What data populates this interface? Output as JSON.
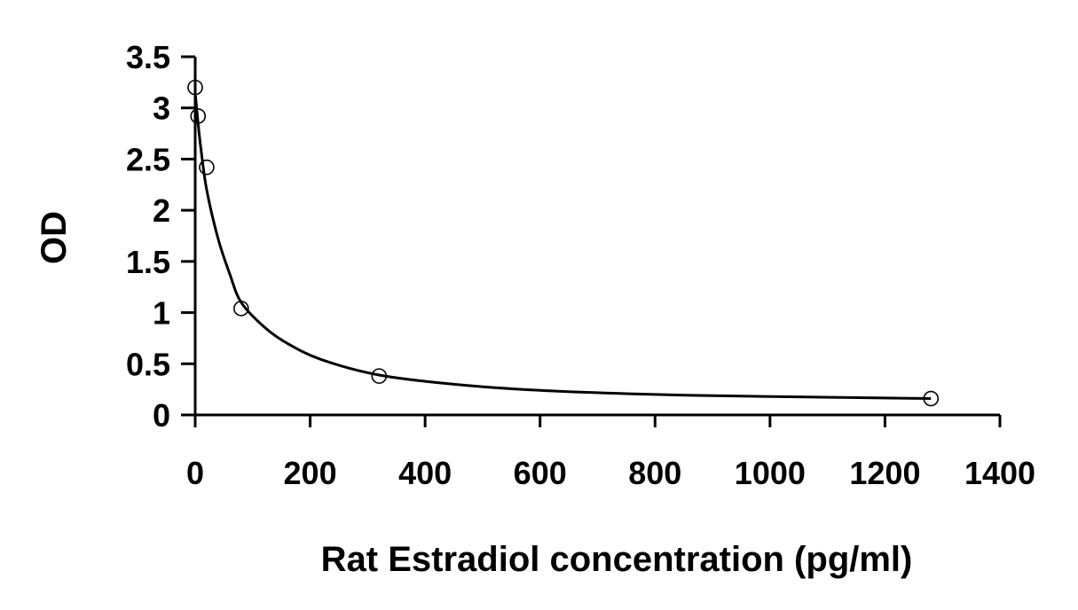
{
  "chart_data": {
    "type": "scatter",
    "title": "",
    "xlabel": "Rat Estradiol concentration (pg/ml)",
    "ylabel": "OD",
    "xlim": [
      0,
      1400
    ],
    "ylim": [
      0,
      3.5
    ],
    "x_ticks": [
      "0",
      "200",
      "400",
      "600",
      "800",
      "1000",
      "1200",
      "1400"
    ],
    "y_ticks": [
      "0",
      "0.5",
      "1",
      "1.5",
      "2",
      "2.5",
      "3",
      "3.5"
    ],
    "grid": false,
    "legend": "none",
    "series": [
      {
        "marker": "open-circle",
        "points": [
          {
            "x": 0,
            "y": 3.2
          },
          {
            "x": 5,
            "y": 2.92
          },
          {
            "x": 20,
            "y": 2.42
          },
          {
            "x": 80,
            "y": 1.04
          },
          {
            "x": 320,
            "y": 0.38
          },
          {
            "x": 1280,
            "y": 0.16
          }
        ]
      }
    ],
    "fit_curve": {
      "style": "smooth",
      "points": [
        {
          "x": 0,
          "y": 3.15
        },
        {
          "x": 5,
          "y": 2.85
        },
        {
          "x": 10,
          "y": 2.6
        },
        {
          "x": 20,
          "y": 2.2
        },
        {
          "x": 40,
          "y": 1.72
        },
        {
          "x": 60,
          "y": 1.38
        },
        {
          "x": 80,
          "y": 1.1
        },
        {
          "x": 120,
          "y": 0.86
        },
        {
          "x": 160,
          "y": 0.7
        },
        {
          "x": 220,
          "y": 0.54
        },
        {
          "x": 320,
          "y": 0.39
        },
        {
          "x": 450,
          "y": 0.3
        },
        {
          "x": 600,
          "y": 0.24
        },
        {
          "x": 800,
          "y": 0.2
        },
        {
          "x": 1000,
          "y": 0.18
        },
        {
          "x": 1280,
          "y": 0.16
        }
      ]
    },
    "colors": {
      "axis": "#000000",
      "marker": "#000000",
      "curve": "#000000"
    }
  }
}
